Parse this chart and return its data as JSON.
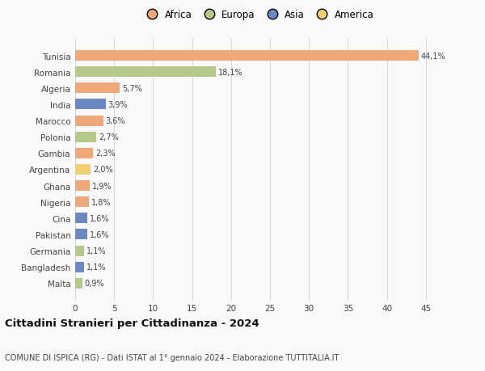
{
  "countries": [
    "Tunisia",
    "Romania",
    "Algeria",
    "India",
    "Marocco",
    "Polonia",
    "Gambia",
    "Argentina",
    "Ghana",
    "Nigeria",
    "Cina",
    "Pakistan",
    "Germania",
    "Bangladesh",
    "Malta"
  ],
  "values": [
    44.1,
    18.1,
    5.7,
    3.9,
    3.6,
    2.7,
    2.3,
    2.0,
    1.9,
    1.8,
    1.6,
    1.6,
    1.1,
    1.1,
    0.9
  ],
  "labels": [
    "44,1%",
    "18,1%",
    "5,7%",
    "3,9%",
    "3,6%",
    "2,7%",
    "2,3%",
    "2,0%",
    "1,9%",
    "1,8%",
    "1,6%",
    "1,6%",
    "1,1%",
    "1,1%",
    "0,9%"
  ],
  "continents": [
    "Africa",
    "Europa",
    "Africa",
    "Asia",
    "Africa",
    "Europa",
    "Africa",
    "America",
    "Africa",
    "Africa",
    "Asia",
    "Asia",
    "Europa",
    "Asia",
    "Europa"
  ],
  "continent_colors": {
    "Africa": "#F0A878",
    "Europa": "#B5C98A",
    "Asia": "#6B87C4",
    "America": "#F0D070"
  },
  "legend_order": [
    "Africa",
    "Europa",
    "Asia",
    "America"
  ],
  "legend_colors": [
    "#F0A878",
    "#B5C98A",
    "#6B87C4",
    "#F0D070"
  ],
  "title": "Cittadini Stranieri per Cittadinanza - 2024",
  "subtitle": "COMUNE DI ISPICA (RG) - Dati ISTAT al 1° gennaio 2024 - Elaborazione TUTTITALIA.IT",
  "xlim": [
    0,
    47
  ],
  "xticks": [
    0,
    5,
    10,
    15,
    20,
    25,
    30,
    35,
    40,
    45
  ],
  "background_color": "#f9f9f9",
  "grid_color": "#d8d8d8",
  "bar_height": 0.65
}
